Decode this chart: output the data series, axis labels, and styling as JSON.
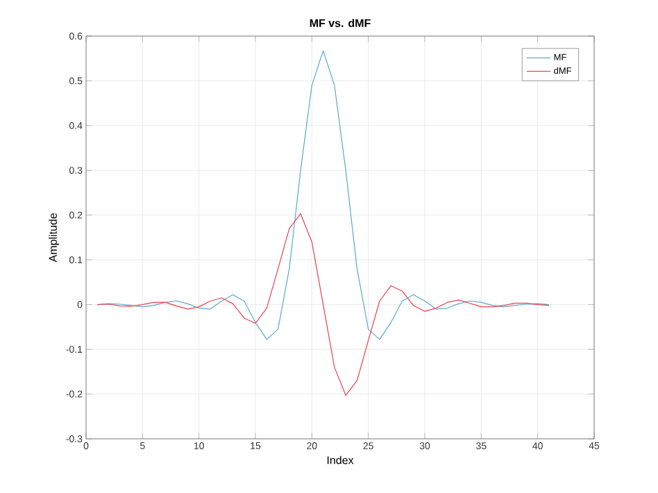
{
  "chart_data": {
    "type": "line",
    "title": "MF vs. dMF",
    "xlabel": "Index",
    "ylabel": "Amplitude",
    "x": [
      1,
      2,
      3,
      4,
      5,
      6,
      7,
      8,
      9,
      10,
      11,
      12,
      13,
      14,
      15,
      16,
      17,
      18,
      19,
      20,
      21,
      22,
      23,
      24,
      25,
      26,
      27,
      28,
      29,
      30,
      31,
      32,
      33,
      34,
      35,
      36,
      37,
      38,
      39,
      40,
      41
    ],
    "series": [
      {
        "name": "MF",
        "color": "#5ba8cc",
        "values": [
          0,
          0.002,
          0.001,
          -0.002,
          -0.005,
          -0.002,
          0.005,
          0.008,
          0.002,
          -0.008,
          -0.01,
          0.008,
          0.022,
          0.008,
          -0.04,
          -0.078,
          -0.055,
          0.08,
          0.3,
          0.49,
          0.567,
          0.49,
          0.3,
          0.08,
          -0.055,
          -0.078,
          -0.04,
          0.008,
          0.022,
          0.008,
          -0.01,
          -0.008,
          0.002,
          0.008,
          0.005,
          -0.002,
          -0.005,
          -0.002,
          0.001,
          0.002,
          0
        ]
      },
      {
        "name": "dMF",
        "color": "#e8414f",
        "values": [
          0,
          0.001,
          -0.003,
          -0.004,
          0,
          0.005,
          0.005,
          -0.003,
          -0.01,
          -0.005,
          0.008,
          0.015,
          0.002,
          -0.03,
          -0.042,
          -0.008,
          0.08,
          0.17,
          0.203,
          0.14,
          0,
          -0.14,
          -0.203,
          -0.17,
          -0.08,
          0.008,
          0.042,
          0.03,
          -0.002,
          -0.015,
          -0.008,
          0.005,
          0.01,
          0.003,
          -0.005,
          -0.005,
          -0.002,
          0.003,
          0.003,
          0,
          -0.002
        ]
      }
    ],
    "xlim": [
      0,
      45
    ],
    "xticks": [
      0,
      5,
      10,
      15,
      20,
      25,
      30,
      35,
      40,
      45
    ],
    "ylim": [
      -0.3,
      0.6
    ],
    "yticks": [
      -0.3,
      -0.2,
      -0.1,
      0,
      0.1,
      0.2,
      0.3,
      0.4,
      0.5,
      0.6
    ],
    "grid": true,
    "legend": "top right",
    "marker": "none",
    "line_style": "solid"
  }
}
